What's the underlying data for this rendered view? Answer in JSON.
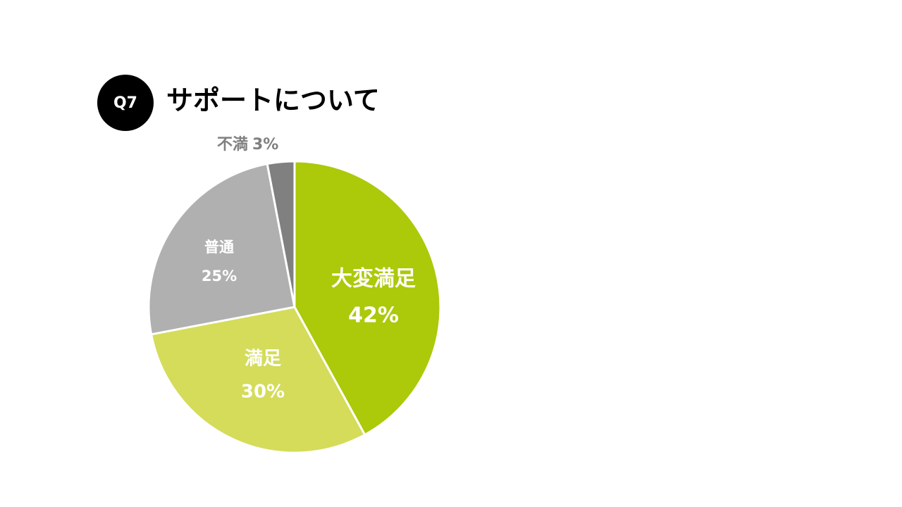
{
  "badge": "Q7",
  "chart_data": {
    "type": "pie",
    "title": "サポートについて",
    "categories": [
      "大変満足",
      "満足",
      "普通",
      "不満"
    ],
    "values": [
      42,
      30,
      25,
      3
    ],
    "value_labels": [
      "42%",
      "30%",
      "25%",
      "3%"
    ],
    "colors": [
      "#acc90a",
      "#d4dc5a",
      "#b0b0b0",
      "#808080"
    ]
  }
}
